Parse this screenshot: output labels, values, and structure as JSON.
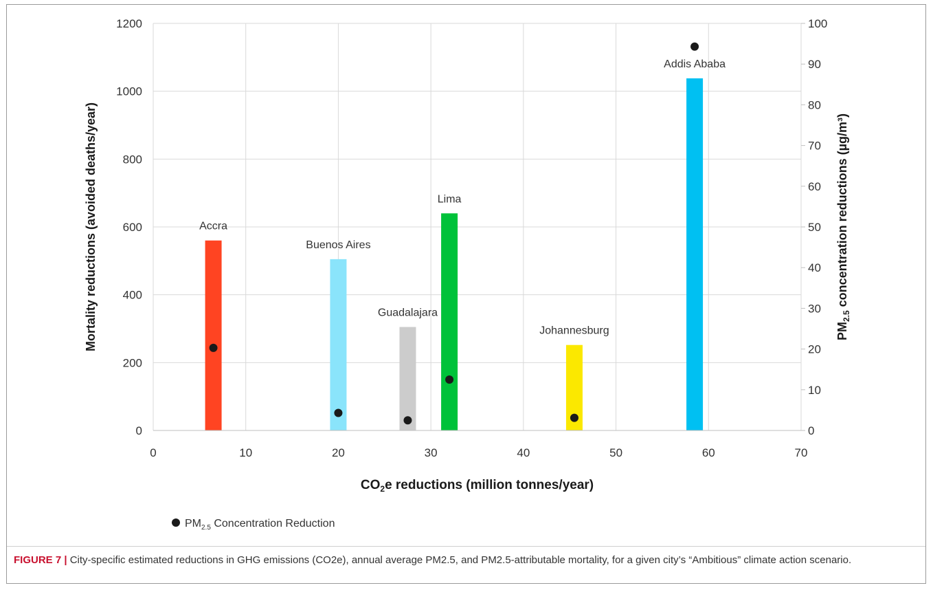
{
  "chart_data": {
    "type": "bar",
    "xlabel": "CO2e reductions (million tonnes/year)",
    "ylabel": "Mortality reductions (avoided deaths/year)",
    "y2label": "PM2.5 concentration reductions (µg/m³)",
    "xlim": [
      0,
      70
    ],
    "ylim": [
      0,
      1200
    ],
    "y2lim": [
      0,
      100
    ],
    "xticks": [
      0,
      10,
      20,
      30,
      40,
      50,
      60,
      70
    ],
    "yticks": [
      0,
      200,
      400,
      600,
      800,
      1000,
      1200
    ],
    "y2ticks": [
      0,
      10,
      20,
      30,
      40,
      50,
      60,
      70,
      80,
      90,
      100
    ],
    "grid": true,
    "legend_position": "bottom-left",
    "legend_label": "PM2.5 Concentration Reduction",
    "cities": [
      {
        "name": "Accra",
        "x": 6.5,
        "mortality": 560,
        "pm25": 20.3,
        "color": "#ff4422"
      },
      {
        "name": "Buenos Aires",
        "x": 20,
        "mortality": 505,
        "pm25": 4.3,
        "color": "#8ae4fb"
      },
      {
        "name": "Guadalajara",
        "x": 27.5,
        "mortality": 305,
        "pm25": 2.5,
        "color": "#cccccc"
      },
      {
        "name": "Lima",
        "x": 32,
        "mortality": 640,
        "pm25": 12.5,
        "color": "#00c23a"
      },
      {
        "name": "Johannesburg",
        "x": 45.5,
        "mortality": 252,
        "pm25": 3.1,
        "color": "#fbe800"
      },
      {
        "name": "Addis Ababa",
        "x": 58.5,
        "mortality": 1038,
        "pm25": 94.3,
        "color": "#00c0f2"
      }
    ]
  },
  "caption": {
    "figure_label": "FIGURE 7 |",
    "text": " City-specific estimated reductions in GHG emissions (CO2e), annual average PM2.5, and PM2.5-attributable mortality, for a given city’s “Ambitious” climate action scenario."
  }
}
